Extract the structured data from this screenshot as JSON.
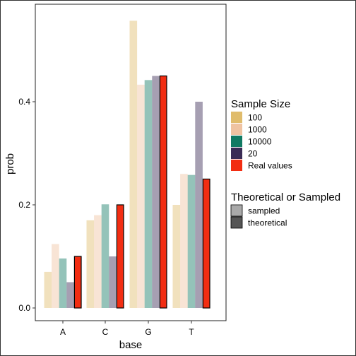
{
  "chart_data": {
    "type": "bar",
    "xlabel": "base",
    "ylabel": "prob",
    "ylim": [
      0,
      0.6
    ],
    "yticks": [
      0.0,
      0.2,
      0.4
    ],
    "ytick_labels": [
      "0.0",
      "0.2",
      "0.4"
    ],
    "categories": [
      "A",
      "C",
      "G",
      "T"
    ],
    "series": [
      {
        "name": "100",
        "kind": "sampled",
        "color": "#E0BC6C",
        "values": [
          0.07,
          0.17,
          0.557,
          0.2
        ]
      },
      {
        "name": "1000",
        "kind": "sampled",
        "color": "#EFC3A2",
        "values": [
          0.124,
          0.18,
          0.433,
          0.26
        ]
      },
      {
        "name": "10000",
        "kind": "sampled",
        "color": "#117A63",
        "values": [
          0.096,
          0.201,
          0.442,
          0.258
        ]
      },
      {
        "name": "20",
        "kind": "sampled",
        "color": "#3A2B55",
        "values": [
          0.05,
          0.1,
          0.45,
          0.4
        ]
      },
      {
        "name": "Real values",
        "kind": "theoretical",
        "color": "#F22D12",
        "values": [
          0.1,
          0.2,
          0.45,
          0.25
        ]
      }
    ],
    "legends": [
      {
        "title": "Sample Size",
        "items": [
          {
            "label": "100",
            "color": "#E0BC6C"
          },
          {
            "label": "1000",
            "color": "#EFC3A2"
          },
          {
            "label": "10000",
            "color": "#117A63"
          },
          {
            "label": "20",
            "color": "#3A2B55"
          },
          {
            "label": "Real values",
            "color": "#F22D12"
          }
        ]
      },
      {
        "title": "Theoretical or Sampled",
        "items": [
          {
            "label": "sampled",
            "color": "#A9A9A9"
          },
          {
            "label": "theoretical",
            "color": "#555555"
          }
        ]
      }
    ],
    "legend_position": "right",
    "grid": false
  }
}
